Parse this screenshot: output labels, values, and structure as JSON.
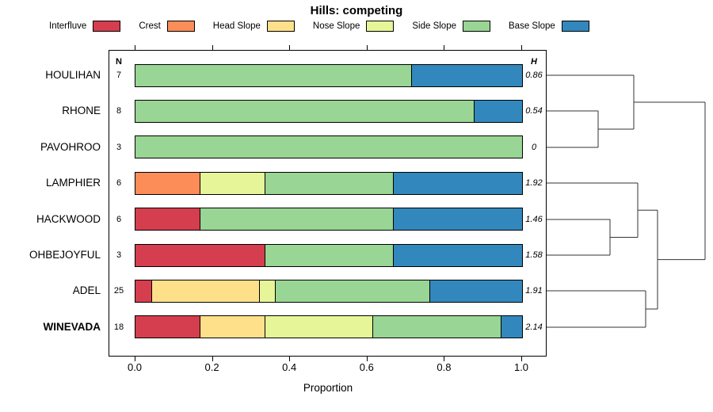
{
  "title": "Hills: competing",
  "col_headers": {
    "n": "N",
    "h": "H"
  },
  "chart_data": {
    "type": "bar",
    "orientation": "horizontal-stacked",
    "title": "Hills: competing",
    "xlabel": "Proportion",
    "xlim": [
      0,
      1
    ],
    "x_ticks": [
      "0.0",
      "0.2",
      "0.4",
      "0.6",
      "0.8",
      "1.0"
    ],
    "legend_position": "top",
    "grid": false,
    "legend": [
      {
        "label": "Interfluve",
        "color": "#d53e4f"
      },
      {
        "label": "Crest",
        "color": "#fc8d59"
      },
      {
        "label": "Head Slope",
        "color": "#fee08b"
      },
      {
        "label": "Nose Slope",
        "color": "#e6f598"
      },
      {
        "label": "Side Slope",
        "color": "#99d594"
      },
      {
        "label": "Base Slope",
        "color": "#3288bd"
      }
    ],
    "rows": [
      {
        "label": "HOULIHAN",
        "n": 7,
        "h": "0.86",
        "bold": false,
        "values": [
          0,
          0,
          0,
          0,
          0.714,
          0.286
        ]
      },
      {
        "label": "RHONE",
        "n": 8,
        "h": "0.54",
        "bold": false,
        "values": [
          0,
          0,
          0,
          0,
          0.875,
          0.125
        ]
      },
      {
        "label": "PAVOHROO",
        "n": 3,
        "h": "0",
        "bold": false,
        "values": [
          0,
          0,
          0,
          0,
          1,
          0
        ]
      },
      {
        "label": "LAMPHIER",
        "n": 6,
        "h": "1.92",
        "bold": false,
        "values": [
          0,
          0.167,
          0,
          0.167,
          0.333,
          0.333
        ]
      },
      {
        "label": "HACKWOOD",
        "n": 6,
        "h": "1.46",
        "bold": false,
        "values": [
          0.167,
          0,
          0,
          0,
          0.5,
          0.333
        ]
      },
      {
        "label": "OHBEJOYFUL",
        "n": 3,
        "h": "1.58",
        "bold": false,
        "values": [
          0.333,
          0,
          0,
          0,
          0.334,
          0.333
        ]
      },
      {
        "label": "ADEL",
        "n": 25,
        "h": "1.91",
        "bold": false,
        "values": [
          0.04,
          0,
          0.28,
          0.04,
          0.4,
          0.24
        ]
      },
      {
        "label": "WINEVADA",
        "n": 18,
        "h": "2.14",
        "bold": true,
        "values": [
          0.167,
          0,
          0.167,
          0.278,
          0.333,
          0.055
        ]
      }
    ],
    "dendrogram": {
      "merges": [
        {
          "a": {
            "leaf": 1
          },
          "b": {
            "leaf": 2
          },
          "x": 755
        },
        {
          "a": {
            "leaf": 0
          },
          "b": {
            "merge": 0
          },
          "x": 800
        },
        {
          "a": {
            "leaf": 4
          },
          "b": {
            "leaf": 5
          },
          "x": 770
        },
        {
          "a": {
            "leaf": 3
          },
          "b": {
            "merge": 2
          },
          "x": 805
        },
        {
          "a": {
            "leaf": 6
          },
          "b": {
            "leaf": 7
          },
          "x": 815
        },
        {
          "a": {
            "merge": 3
          },
          "b": {
            "merge": 4
          },
          "x": 830
        },
        {
          "a": {
            "merge": 1
          },
          "b": {
            "merge": 5
          },
          "x": 890
        }
      ]
    }
  }
}
